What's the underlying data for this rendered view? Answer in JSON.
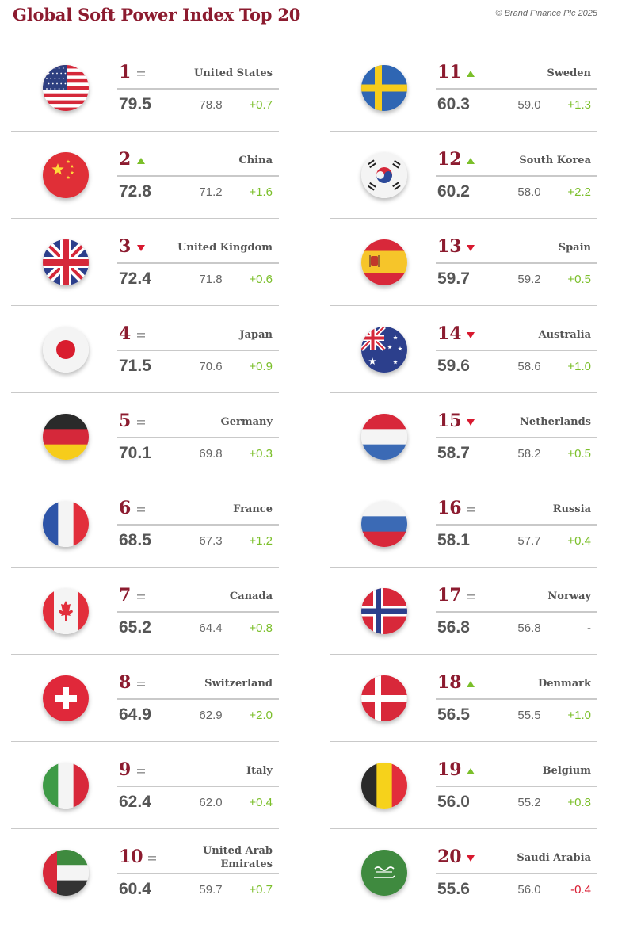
{
  "title": "Global Soft Power Index Top 20",
  "copyright": "© Brand Finance Plc 2025",
  "colors": {
    "title": "#8c1b2f",
    "rank": "#8c1b2f",
    "up": "#7bbf2a",
    "down": "#d8192f",
    "equal": "#999999",
    "text": "#555555"
  },
  "chart_data": {
    "type": "table",
    "title": "Global Soft Power Index Top 20",
    "columns": [
      "rank",
      "movement",
      "country",
      "score_2025",
      "score_2024",
      "change"
    ],
    "rows": [
      {
        "rank": "1",
        "movement": "same",
        "country": "United States",
        "score": "79.5",
        "previous": "78.8",
        "change": "+0.7",
        "flag": "us-flag-icon"
      },
      {
        "rank": "2",
        "movement": "up",
        "country": "China",
        "score": "72.8",
        "previous": "71.2",
        "change": "+1.6",
        "flag": "china-flag-icon"
      },
      {
        "rank": "3",
        "movement": "down",
        "country": "United Kingdom",
        "score": "72.4",
        "previous": "71.8",
        "change": "+0.6",
        "flag": "uk-flag-icon"
      },
      {
        "rank": "4",
        "movement": "same",
        "country": "Japan",
        "score": "71.5",
        "previous": "70.6",
        "change": "+0.9",
        "flag": "japan-flag-icon"
      },
      {
        "rank": "5",
        "movement": "same",
        "country": "Germany",
        "score": "70.1",
        "previous": "69.8",
        "change": "+0.3",
        "flag": "germany-flag-icon"
      },
      {
        "rank": "6",
        "movement": "same",
        "country": "France",
        "score": "68.5",
        "previous": "67.3",
        "change": "+1.2",
        "flag": "france-flag-icon"
      },
      {
        "rank": "7",
        "movement": "same",
        "country": "Canada",
        "score": "65.2",
        "previous": "64.4",
        "change": "+0.8",
        "flag": "canada-flag-icon"
      },
      {
        "rank": "8",
        "movement": "same",
        "country": "Switzerland",
        "score": "64.9",
        "previous": "62.9",
        "change": "+2.0",
        "flag": "switzerland-flag-icon"
      },
      {
        "rank": "9",
        "movement": "same",
        "country": "Italy",
        "score": "62.4",
        "previous": "62.0",
        "change": "+0.4",
        "flag": "italy-flag-icon"
      },
      {
        "rank": "10",
        "movement": "same",
        "country": "United Arab Emirates",
        "score": "60.4",
        "previous": "59.7",
        "change": "+0.7",
        "flag": "uae-flag-icon"
      },
      {
        "rank": "11",
        "movement": "up",
        "country": "Sweden",
        "score": "60.3",
        "previous": "59.0",
        "change": "+1.3",
        "flag": "sweden-flag-icon"
      },
      {
        "rank": "12",
        "movement": "up",
        "country": "South Korea",
        "score": "60.2",
        "previous": "58.0",
        "change": "+2.2",
        "flag": "south-korea-flag-icon"
      },
      {
        "rank": "13",
        "movement": "down",
        "country": "Spain",
        "score": "59.7",
        "previous": "59.2",
        "change": "+0.5",
        "flag": "spain-flag-icon"
      },
      {
        "rank": "14",
        "movement": "down",
        "country": "Australia",
        "score": "59.6",
        "previous": "58.6",
        "change": "+1.0",
        "flag": "australia-flag-icon"
      },
      {
        "rank": "15",
        "movement": "down",
        "country": "Netherlands",
        "score": "58.7",
        "previous": "58.2",
        "change": "+0.5",
        "flag": "netherlands-flag-icon"
      },
      {
        "rank": "16",
        "movement": "same",
        "country": "Russia",
        "score": "58.1",
        "previous": "57.7",
        "change": "+0.4",
        "flag": "russia-flag-icon"
      },
      {
        "rank": "17",
        "movement": "same",
        "country": "Norway",
        "score": "56.8",
        "previous": "56.8",
        "change": "-",
        "flag": "norway-flag-icon"
      },
      {
        "rank": "18",
        "movement": "up",
        "country": "Denmark",
        "score": "56.5",
        "previous": "55.5",
        "change": "+1.0",
        "flag": "denmark-flag-icon"
      },
      {
        "rank": "19",
        "movement": "up",
        "country": "Belgium",
        "score": "56.0",
        "previous": "55.2",
        "change": "+0.8",
        "flag": "belgium-flag-icon"
      },
      {
        "rank": "20",
        "movement": "down",
        "country": "Saudi Arabia",
        "score": "55.6",
        "previous": "56.0",
        "change": "-0.4",
        "flag": "saudi-arabia-flag-icon"
      }
    ]
  }
}
